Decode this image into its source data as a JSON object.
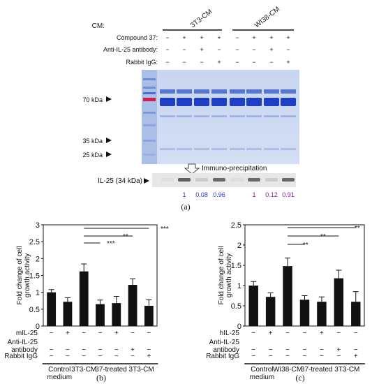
{
  "panel_a": {
    "cm_label": "CM:",
    "group1": "3T3-CM",
    "group2": "WI38-CM",
    "row_labels": [
      "Compound 37:",
      "Anti-IL-25 antibody:",
      "Rabbit IgG:"
    ],
    "row_signs": [
      [
        "−",
        "+",
        "+",
        "+",
        "−",
        "+",
        "+",
        "+"
      ],
      [
        "−",
        "−",
        "+",
        "−",
        "−",
        "−",
        "+",
        "−"
      ],
      [
        "−",
        "−",
        "−",
        "+",
        "−",
        "−",
        "−",
        "+"
      ]
    ],
    "markers": [
      "70 kDa",
      "35 kDa",
      "25 kDa"
    ],
    "ip_label": "Immuno-precipitation",
    "band_label": "IL-25 (34 kDa)",
    "band_values": [
      {
        "text": "1",
        "color": "#2a3fc4"
      },
      {
        "text": "0.08",
        "color": "#2a3fc4"
      },
      {
        "text": "0.96",
        "color": "#2a3fc4"
      },
      {
        "text": "1",
        "color": "#8b1a8b"
      },
      {
        "text": "0.12",
        "color": "#8b1a8b"
      },
      {
        "text": "0.91",
        "color": "#8b1a8b"
      }
    ],
    "caption": "(a)"
  },
  "panel_b": {
    "ylabel_line1": "Fold change of cell",
    "ylabel_line2": "growth activity",
    "ytick_labels": [
      "0",
      "0.5",
      "1",
      "1.5",
      "2",
      "2.5",
      "3"
    ],
    "row_labels": [
      "mIL-25",
      "Anti-IL-25",
      "antibody",
      "Rabbit IgG"
    ],
    "row_signs": [
      [
        "−",
        "+",
        "−",
        "−",
        "+",
        "−",
        "−"
      ],
      [
        "−",
        "−",
        "−",
        "−",
        "−",
        "+",
        "−"
      ],
      [
        "−",
        "−",
        "−",
        "−",
        "−",
        "−",
        "+"
      ]
    ],
    "group_labels": [
      "Control",
      "medium",
      "3T3-CM",
      "37-treated 3T3-CM"
    ],
    "sig": [
      "***",
      "**",
      "***"
    ],
    "caption": "(b)"
  },
  "panel_c": {
    "ylabel_line1": "Fold change of cell",
    "ylabel_line2": "growth activity",
    "ytick_labels": [
      "0",
      "0.5",
      "1",
      "1.5",
      "2",
      "2.5"
    ],
    "row_labels": [
      "hIL-25",
      "Anti-IL-25",
      "antibody",
      "Rabbit IgG"
    ],
    "row_signs": [
      [
        "−",
        "+",
        "−",
        "−",
        "+",
        "−",
        "−"
      ],
      [
        "−",
        "−",
        "−",
        "−",
        "−",
        "+",
        "−"
      ],
      [
        "−",
        "−",
        "−",
        "−",
        "−",
        "−",
        "+"
      ]
    ],
    "group_labels": [
      "Control",
      "medium",
      "WI38-CM",
      "37-treated 3T3-CM"
    ],
    "sig": [
      "**",
      "**",
      "**"
    ],
    "caption": "(c)"
  },
  "chart_data": [
    {
      "type": "bar",
      "ylim": [
        0,
        3
      ],
      "yticks": [
        0,
        0.5,
        1,
        1.5,
        2,
        2.5,
        3
      ],
      "ylabel": "Fold change of cell growth activity",
      "values": [
        1.0,
        0.72,
        1.62,
        0.65,
        0.68,
        1.22,
        0.6
      ],
      "errors": [
        0.08,
        0.12,
        0.22,
        0.12,
        0.2,
        0.18,
        0.18
      ]
    },
    {
      "type": "bar",
      "ylim": [
        0,
        2.5
      ],
      "yticks": [
        0,
        0.5,
        1,
        1.5,
        2,
        2.5
      ],
      "ylabel": "Fold change of cell growth activity",
      "values": [
        1.0,
        0.72,
        1.48,
        0.65,
        0.6,
        1.18,
        0.6
      ],
      "errors": [
        0.1,
        0.1,
        0.2,
        0.1,
        0.12,
        0.2,
        0.25
      ]
    }
  ]
}
